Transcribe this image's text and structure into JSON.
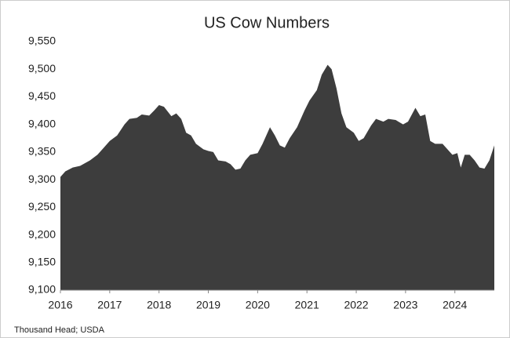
{
  "chart_data": {
    "type": "area",
    "title": "US Cow Numbers",
    "source": "Thousand Head; USDA",
    "color": "#3d3d3d",
    "x": [
      2016,
      2016.1,
      2016.25,
      2016.4,
      2016.5,
      2016.6,
      2016.75,
      2016.9,
      2017,
      2017.15,
      2017.3,
      2017.4,
      2017.55,
      2017.65,
      2017.8,
      2017.9,
      2018,
      2018.1,
      2018.25,
      2018.35,
      2018.45,
      2018.55,
      2018.65,
      2018.75,
      2018.9,
      2019,
      2019.1,
      2019.2,
      2019.35,
      2019.45,
      2019.55,
      2019.65,
      2019.75,
      2019.85,
      2020,
      2020.1,
      2020.25,
      2020.35,
      2020.45,
      2020.55,
      2020.65,
      2020.8,
      2020.95,
      2021.05,
      2021.2,
      2021.3,
      2021.42,
      2021.5,
      2021.6,
      2021.7,
      2021.8,
      2021.95,
      2022.05,
      2022.15,
      2022.3,
      2022.4,
      2022.55,
      2022.65,
      2022.8,
      2022.95,
      2023.05,
      2023.2,
      2023.3,
      2023.4,
      2023.5,
      2023.6,
      2023.75,
      2023.85,
      2023.95,
      2024.05,
      2024.12,
      2024.2,
      2024.3,
      2024.4,
      2024.5,
      2024.6,
      2024.7,
      2024.8
    ],
    "values": [
      9305,
      9315,
      9322,
      9325,
      9330,
      9335,
      9345,
      9360,
      9370,
      9380,
      9400,
      9410,
      9412,
      9418,
      9416,
      9425,
      9435,
      9432,
      9415,
      9420,
      9410,
      9385,
      9380,
      9365,
      9355,
      9352,
      9350,
      9335,
      9333,
      9328,
      9318,
      9320,
      9335,
      9345,
      9348,
      9365,
      9395,
      9380,
      9362,
      9358,
      9375,
      9395,
      9425,
      9443,
      9462,
      9490,
      9508,
      9500,
      9465,
      9420,
      9395,
      9385,
      9370,
      9375,
      9398,
      9410,
      9405,
      9410,
      9408,
      9400,
      9405,
      9430,
      9415,
      9418,
      9370,
      9365,
      9365,
      9355,
      9345,
      9348,
      9322,
      9345,
      9345,
      9335,
      9322,
      9320,
      9335,
      9362
    ],
    "xlim": [
      2016,
      2024.8
    ],
    "xticks": [
      2016,
      2017,
      2018,
      2019,
      2020,
      2021,
      2022,
      2023,
      2024
    ],
    "ylim": [
      9100,
      9550
    ],
    "yticks": [
      {
        "value": 9100,
        "label": "9,100"
      },
      {
        "value": 9150,
        "label": "9,150"
      },
      {
        "value": 9200,
        "label": "9,200"
      },
      {
        "value": 9250,
        "label": "9,250"
      },
      {
        "value": 9300,
        "label": "9,300"
      },
      {
        "value": 9350,
        "label": "9,350"
      },
      {
        "value": 9400,
        "label": "9,400"
      },
      {
        "value": 9450,
        "label": "9,450"
      },
      {
        "value": 9500,
        "label": "9,500"
      },
      {
        "value": 9550,
        "label": "9,550"
      }
    ],
    "grid": false
  }
}
